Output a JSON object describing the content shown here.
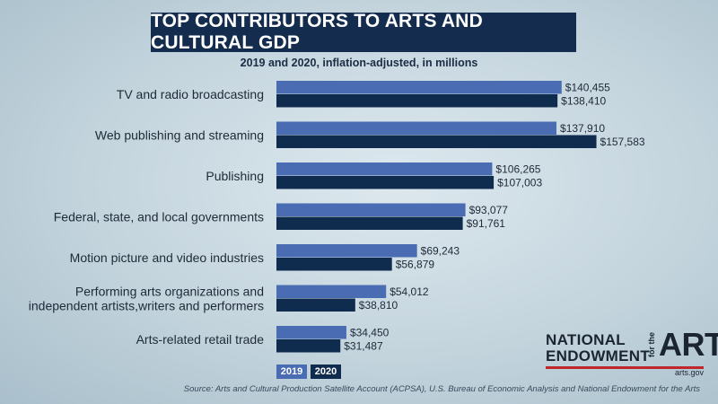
{
  "header": {
    "title": "TOP CONTRIBUTORS TO ARTS AND CULTURAL GDP",
    "subtitle": "2019 and 2020, inflation-adjusted, in millions"
  },
  "legend": {
    "label_2019": "2019",
    "label_2020": "2020"
  },
  "footer": {
    "source": "Source: Arts and Cultural Production Satellite Account (ACPSA), U.S. Bureau of Economic Analysis and National Endowment for the Arts"
  },
  "logo": {
    "line1": "NATIONAL",
    "line2": "ENDOWMENT",
    "small": "for the",
    "big": "ARTS",
    "url": "arts.gov"
  },
  "colors": {
    "series_2019": "#4a6cb3",
    "series_2020": "#0f2b4d",
    "title_bg": "#142d4f",
    "logo_rule": "#c0272d"
  },
  "chart_data": {
    "type": "bar",
    "orientation": "horizontal",
    "title": "TOP CONTRIBUTORS TO ARTS AND CULTURAL GDP",
    "subtitle": "2019 and 2020, inflation-adjusted, in millions",
    "categories": [
      [
        "TV and radio broadcasting"
      ],
      [
        "Web publishing and streaming"
      ],
      [
        "Publishing"
      ],
      [
        "Federal, state, and local governments"
      ],
      [
        "Motion picture and video industries"
      ],
      [
        "Performing arts organizations and",
        "independent artists,writers and performers"
      ],
      [
        "Arts-related retail trade"
      ]
    ],
    "series": [
      {
        "name": "2019",
        "values": [
          140455,
          137910,
          106265,
          93077,
          69243,
          54012,
          34450
        ],
        "labels": [
          "$140,455",
          "$137,910",
          "$106,265",
          "$93,077",
          "$69,243",
          "$54,012",
          "$34,450"
        ]
      },
      {
        "name": "2020",
        "values": [
          138410,
          157583,
          107003,
          91761,
          56879,
          38810,
          31487
        ],
        "labels": [
          "$138,410",
          "$157,583",
          "$107,003",
          "$91,761",
          "$56,879",
          "$38,810",
          "$31,487"
        ]
      }
    ],
    "xlim": [
      0,
      160000
    ],
    "grid": false,
    "legend_position": "bottom-left"
  }
}
